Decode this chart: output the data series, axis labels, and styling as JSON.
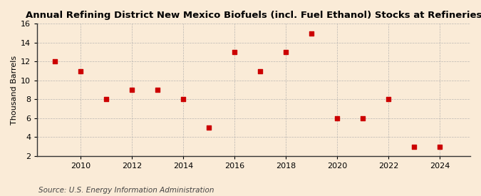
{
  "title": "Annual Refining District New Mexico Biofuels (incl. Fuel Ethanol) Stocks at Refineries",
  "ylabel": "Thousand Barrels",
  "source": "Source: U.S. Energy Information Administration",
  "background_color": "#faebd7",
  "years": [
    2009,
    2010,
    2011,
    2012,
    2013,
    2014,
    2015,
    2016,
    2017,
    2018,
    2019,
    2020,
    2021,
    2022,
    2023,
    2024
  ],
  "values": [
    12,
    11,
    8,
    9,
    9,
    8,
    5,
    13,
    11,
    13,
    15,
    6,
    6,
    8,
    3,
    3
  ],
  "marker_color": "#cc0000",
  "marker": "s",
  "marker_size": 4,
  "ylim": [
    2,
    16
  ],
  "yticks": [
    2,
    4,
    6,
    8,
    10,
    12,
    14,
    16
  ],
  "xlim": [
    2008.3,
    2025.2
  ],
  "xticks": [
    2010,
    2012,
    2014,
    2016,
    2018,
    2020,
    2022,
    2024
  ],
  "grid_color": "#aaaaaa",
  "title_fontsize": 9.5,
  "axis_fontsize": 8,
  "ylabel_fontsize": 8,
  "source_fontsize": 7.5
}
